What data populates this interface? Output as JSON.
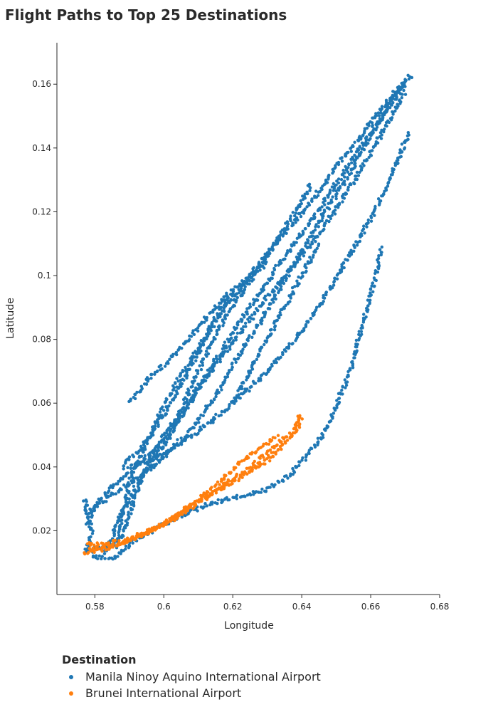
{
  "title": "Flight Paths to Top 25 Destinations",
  "chart_data": {
    "type": "scatter",
    "title": "Flight Paths to Top 25 Destinations",
    "xlabel": "Longitude",
    "ylabel": "Latitude",
    "xlim": [
      0.569,
      0.68
    ],
    "ylim": [
      0.0,
      0.173
    ],
    "xticks": [
      0.58,
      0.6,
      0.62,
      0.64,
      0.66,
      0.68
    ],
    "xtick_labels": [
      "0.58",
      "0.6",
      "0.62",
      "0.64",
      "0.66",
      "0.68"
    ],
    "yticks": [
      0.02,
      0.04,
      0.06,
      0.08,
      0.1,
      0.12,
      0.14,
      0.16
    ],
    "ytick_labels": [
      "0.02",
      "0.04",
      "0.06",
      "0.08",
      "0.1",
      "0.12",
      "0.14",
      "0.16"
    ],
    "grid": false,
    "legend": {
      "title": "Destination",
      "position": "bottom-left"
    },
    "series": [
      {
        "name": "Manila Ninoy Aquino International Airport",
        "color": "#1f77b4",
        "paths": [
          [
            [
              0.577,
              0.014
            ],
            [
              0.583,
              0.015
            ],
            [
              0.588,
              0.018
            ],
            [
              0.59,
              0.025
            ],
            [
              0.592,
              0.032
            ],
            [
              0.595,
              0.04
            ],
            [
              0.6,
              0.05
            ],
            [
              0.607,
              0.06
            ],
            [
              0.613,
              0.07
            ],
            [
              0.62,
              0.082
            ],
            [
              0.627,
              0.093
            ],
            [
              0.633,
              0.103
            ],
            [
              0.64,
              0.113
            ],
            [
              0.647,
              0.124
            ],
            [
              0.653,
              0.134
            ],
            [
              0.66,
              0.145
            ],
            [
              0.666,
              0.155
            ],
            [
              0.671,
              0.162
            ]
          ],
          [
            [
              0.578,
              0.026
            ],
            [
              0.585,
              0.031
            ],
            [
              0.592,
              0.036
            ],
            [
              0.6,
              0.043
            ],
            [
              0.608,
              0.052
            ],
            [
              0.615,
              0.062
            ],
            [
              0.62,
              0.072
            ],
            [
              0.626,
              0.082
            ],
            [
              0.632,
              0.093
            ],
            [
              0.638,
              0.104
            ],
            [
              0.644,
              0.115
            ],
            [
              0.651,
              0.127
            ],
            [
              0.658,
              0.14
            ],
            [
              0.664,
              0.151
            ],
            [
              0.67,
              0.16
            ]
          ],
          [
            [
              0.586,
              0.015
            ],
            [
              0.588,
              0.025
            ],
            [
              0.59,
              0.035
            ],
            [
              0.594,
              0.045
            ],
            [
              0.598,
              0.055
            ],
            [
              0.603,
              0.065
            ],
            [
              0.608,
              0.074
            ],
            [
              0.614,
              0.084
            ],
            [
              0.62,
              0.093
            ],
            [
              0.627,
              0.103
            ],
            [
              0.634,
              0.112
            ],
            [
              0.642,
              0.122
            ],
            [
              0.65,
              0.134
            ],
            [
              0.658,
              0.145
            ],
            [
              0.665,
              0.155
            ],
            [
              0.672,
              0.163
            ]
          ],
          [
            [
              0.59,
              0.04
            ],
            [
              0.6,
              0.044
            ],
            [
              0.61,
              0.051
            ],
            [
              0.62,
              0.06
            ],
            [
              0.63,
              0.07
            ],
            [
              0.638,
              0.08
            ],
            [
              0.646,
              0.092
            ],
            [
              0.653,
              0.105
            ],
            [
              0.66,
              0.118
            ],
            [
              0.666,
              0.131
            ],
            [
              0.671,
              0.145
            ]
          ],
          [
            [
              0.578,
              0.022
            ],
            [
              0.58,
              0.028
            ],
            [
              0.585,
              0.034
            ],
            [
              0.592,
              0.04
            ],
            [
              0.6,
              0.048
            ],
            [
              0.606,
              0.057
            ],
            [
              0.611,
              0.066
            ],
            [
              0.617,
              0.075
            ],
            [
              0.623,
              0.083
            ],
            [
              0.629,
              0.092
            ],
            [
              0.636,
              0.101
            ],
            [
              0.643,
              0.11
            ],
            [
              0.65,
              0.121
            ],
            [
              0.657,
              0.133
            ],
            [
              0.664,
              0.146
            ],
            [
              0.67,
              0.158
            ]
          ],
          [
            [
              0.588,
              0.04
            ],
            [
              0.595,
              0.048
            ],
            [
              0.601,
              0.058
            ],
            [
              0.606,
              0.068
            ],
            [
              0.611,
              0.078
            ],
            [
              0.615,
              0.087
            ],
            [
              0.62,
              0.095
            ],
            [
              0.625,
              0.1
            ],
            [
              0.63,
              0.104
            ]
          ],
          [
            [
              0.62,
              0.06
            ],
            [
              0.625,
              0.07
            ],
            [
              0.63,
              0.08
            ],
            [
              0.635,
              0.09
            ],
            [
              0.64,
              0.1
            ],
            [
              0.645,
              0.11
            ]
          ],
          [
            [
              0.583,
              0.013
            ],
            [
              0.585,
              0.018
            ],
            [
              0.588,
              0.026
            ],
            [
              0.592,
              0.034
            ],
            [
              0.597,
              0.042
            ],
            [
              0.602,
              0.05
            ],
            [
              0.605,
              0.058
            ],
            [
              0.609,
              0.068
            ],
            [
              0.614,
              0.079
            ],
            [
              0.619,
              0.089
            ],
            [
              0.625,
              0.098
            ],
            [
              0.631,
              0.108
            ],
            [
              0.637,
              0.118
            ],
            [
              0.643,
              0.129
            ]
          ],
          [
            [
              0.587,
              0.013
            ],
            [
              0.593,
              0.018
            ],
            [
              0.6,
              0.022
            ],
            [
              0.608,
              0.026
            ],
            [
              0.615,
              0.029
            ],
            [
              0.623,
              0.031
            ],
            [
              0.63,
              0.033
            ],
            [
              0.636,
              0.037
            ],
            [
              0.641,
              0.043
            ],
            [
              0.645,
              0.048
            ],
            [
              0.648,
              0.054
            ],
            [
              0.651,
              0.062
            ],
            [
              0.654,
              0.07
            ],
            [
              0.656,
              0.078
            ],
            [
              0.658,
              0.086
            ],
            [
              0.66,
              0.094
            ],
            [
              0.662,
              0.102
            ],
            [
              0.663,
              0.109
            ]
          ],
          [
            [
              0.59,
              0.06
            ],
            [
              0.593,
              0.064
            ],
            [
              0.596,
              0.068
            ],
            [
              0.6,
              0.072
            ],
            [
              0.604,
              0.076
            ],
            [
              0.607,
              0.08
            ],
            [
              0.611,
              0.085
            ],
            [
              0.615,
              0.09
            ],
            [
              0.619,
              0.095
            ]
          ],
          [
            [
              0.577,
              0.03
            ],
            [
              0.579,
              0.02
            ],
            [
              0.578,
              0.014
            ],
            [
              0.58,
              0.012
            ],
            [
              0.584,
              0.011
            ],
            [
              0.587,
              0.012
            ]
          ]
        ]
      },
      {
        "name": "Brunei International Airport",
        "color": "#ff7f0e",
        "paths": [
          [
            [
              0.578,
              0.014
            ],
            [
              0.583,
              0.015
            ],
            [
              0.588,
              0.016
            ],
            [
              0.594,
              0.019
            ],
            [
              0.6,
              0.022
            ],
            [
              0.606,
              0.026
            ],
            [
              0.612,
              0.03
            ],
            [
              0.618,
              0.034
            ],
            [
              0.624,
              0.038
            ],
            [
              0.63,
              0.042
            ],
            [
              0.635,
              0.047
            ],
            [
              0.639,
              0.052
            ],
            [
              0.639,
              0.057
            ]
          ],
          [
            [
              0.578,
              0.016
            ],
            [
              0.583,
              0.016
            ],
            [
              0.589,
              0.017
            ],
            [
              0.596,
              0.02
            ],
            [
              0.603,
              0.024
            ],
            [
              0.61,
              0.029
            ],
            [
              0.617,
              0.034
            ],
            [
              0.624,
              0.039
            ],
            [
              0.631,
              0.045
            ],
            [
              0.637,
              0.051
            ],
            [
              0.64,
              0.056
            ]
          ],
          [
            [
              0.577,
              0.013
            ],
            [
              0.582,
              0.014
            ],
            [
              0.586,
              0.015
            ],
            [
              0.592,
              0.018
            ],
            [
              0.598,
              0.021
            ],
            [
              0.604,
              0.025
            ],
            [
              0.61,
              0.03
            ],
            [
              0.616,
              0.035
            ],
            [
              0.622,
              0.041
            ],
            [
              0.628,
              0.046
            ],
            [
              0.633,
              0.05
            ]
          ]
        ]
      }
    ]
  }
}
